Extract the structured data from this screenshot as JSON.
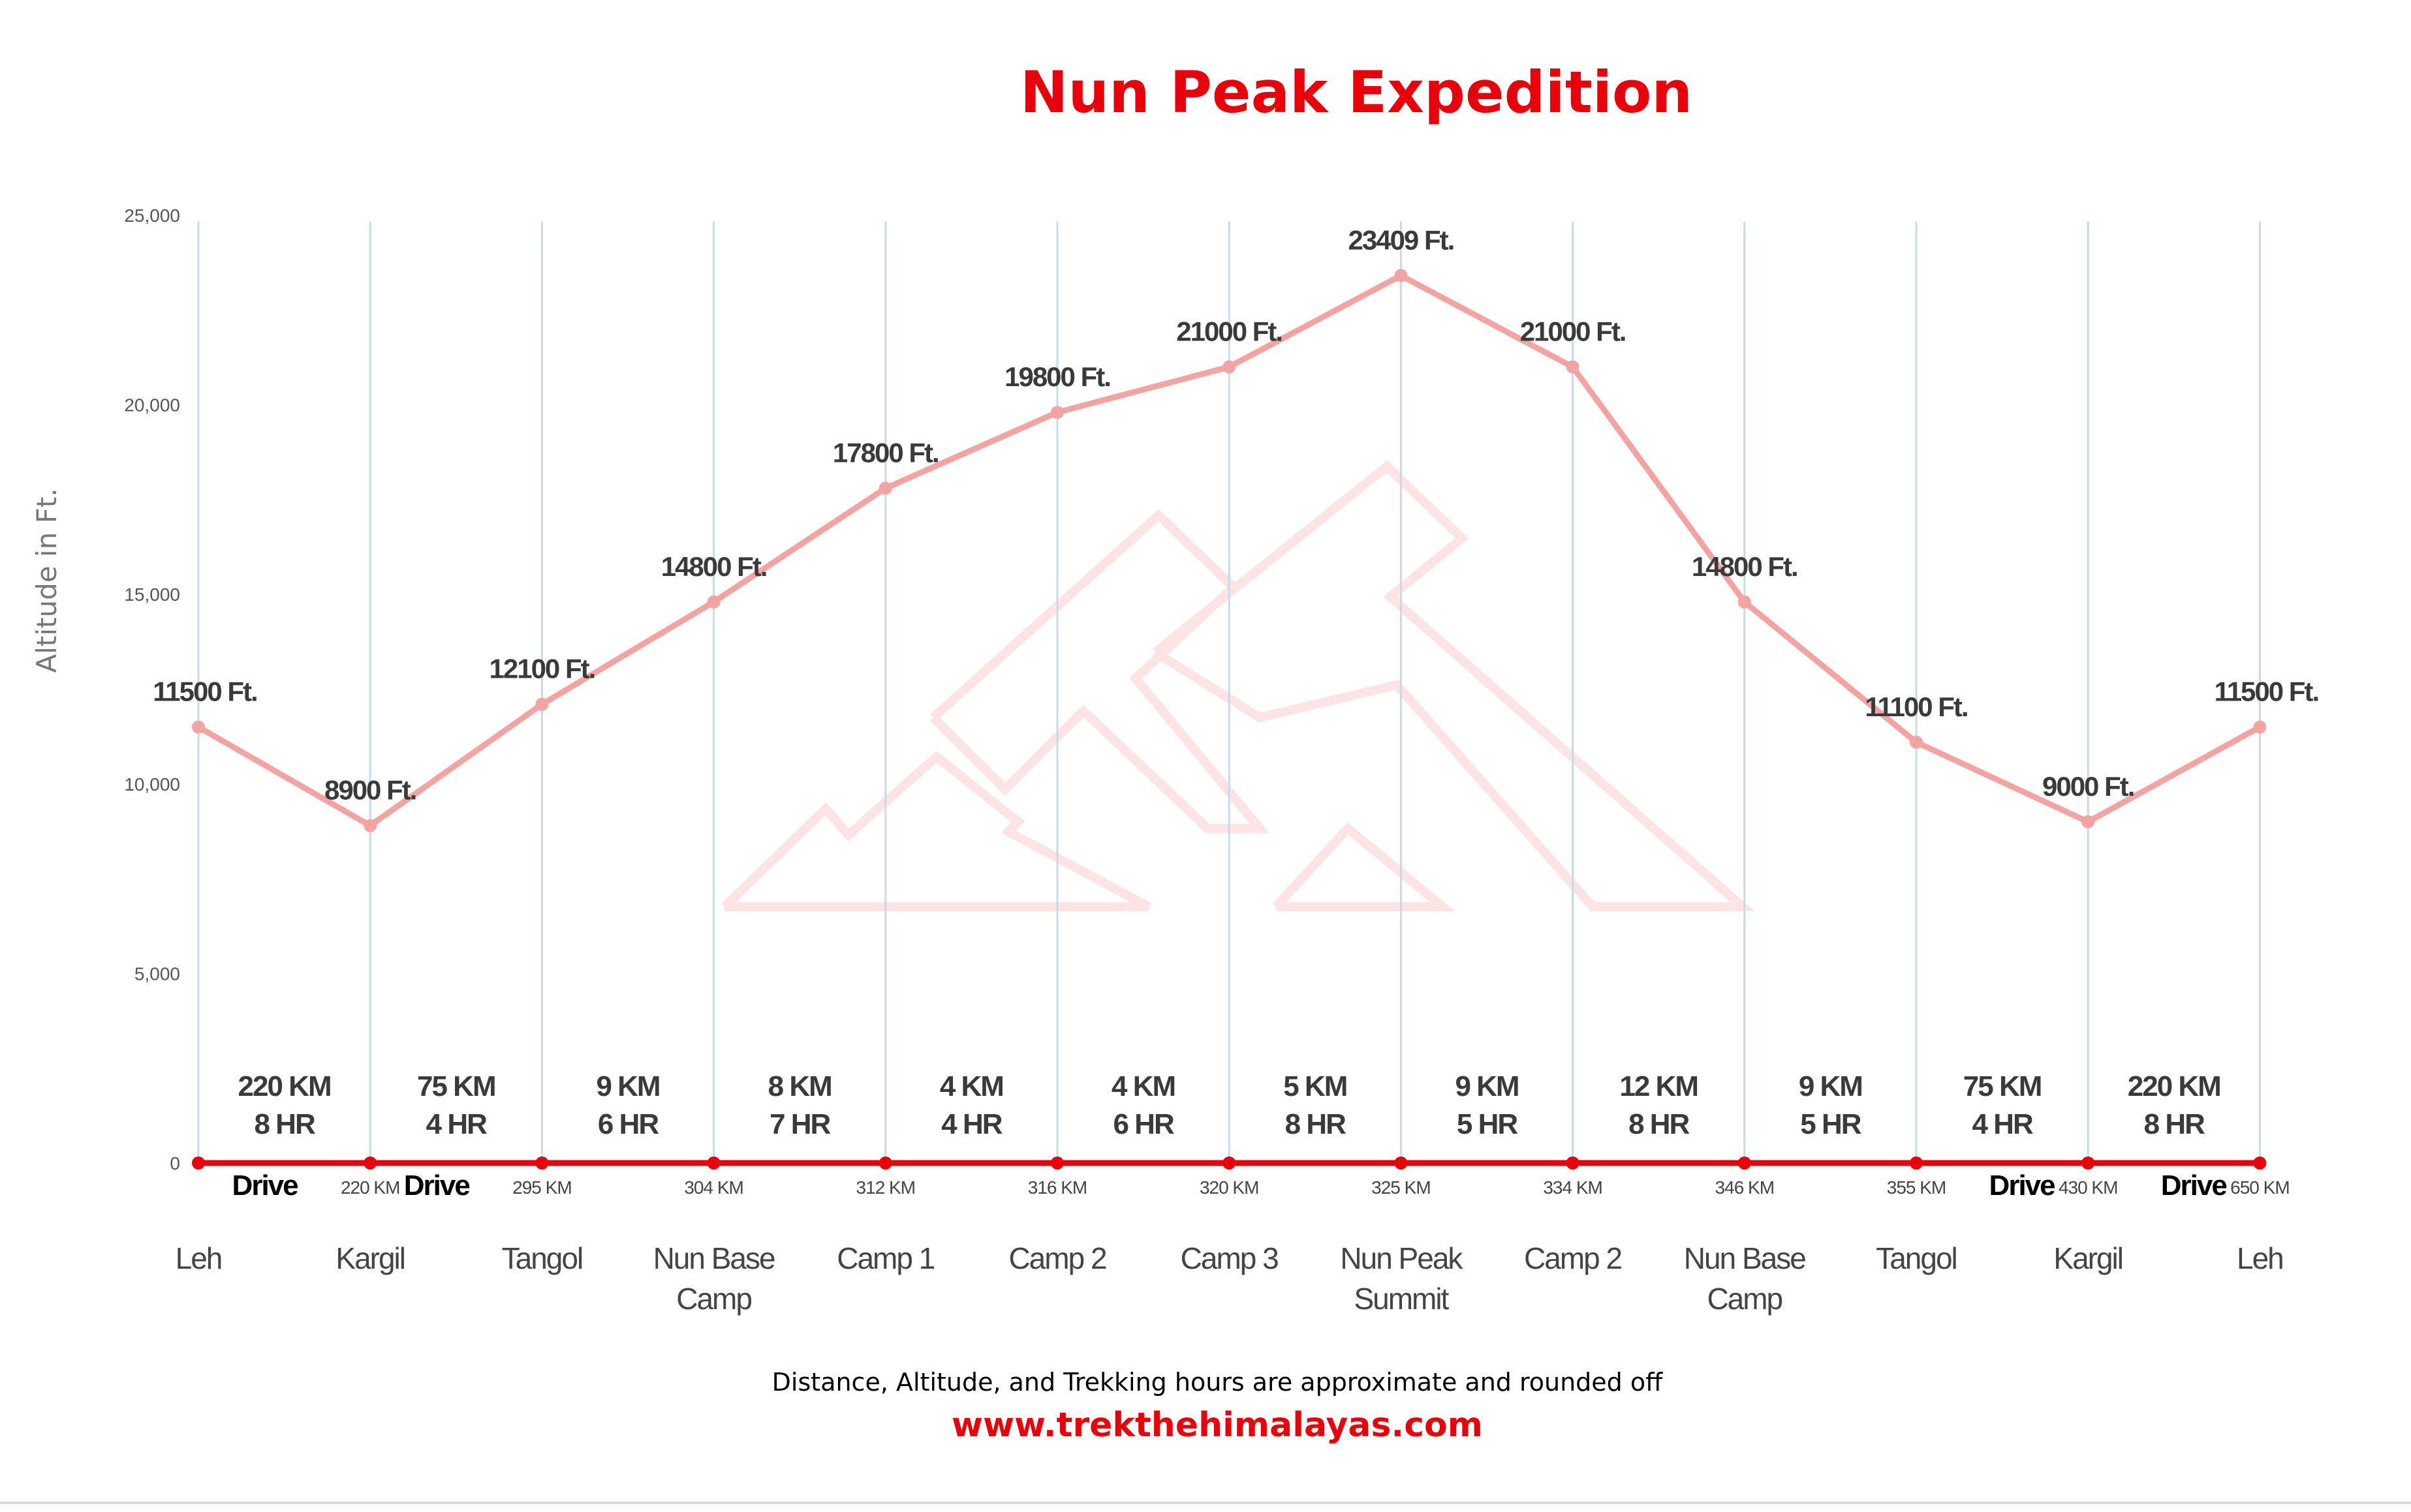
{
  "chart_data": {
    "type": "line",
    "title": "Nun Peak Expedition",
    "ylabel": "Altitude in Ft.",
    "xlabel": "",
    "ylim": [
      0,
      25000
    ],
    "yticks": [
      "0",
      "5,000",
      "10,000",
      "15,000",
      "20,000",
      "25,000"
    ],
    "ytick_values": [
      0,
      5000,
      10000,
      15000,
      20000,
      25000
    ],
    "grid": "vertical lines at each station",
    "colors": {
      "altitude_line": "#f4a3a3",
      "baseline": "#e8000b",
      "grid": "#c9d9ec",
      "title": "#e8000b"
    },
    "stations": [
      {
        "name": [
          "Leh"
        ],
        "altitude": 11500,
        "altitude_label": "11500 Ft.",
        "km_label": ""
      },
      {
        "name": [
          "Kargil"
        ],
        "altitude": 8900,
        "altitude_label": "8900 Ft.",
        "km_label": "220 KM"
      },
      {
        "name": [
          "Tangol"
        ],
        "altitude": 12100,
        "altitude_label": "12100 Ft.",
        "km_label": "295 KM"
      },
      {
        "name": [
          "Nun Base",
          "Camp"
        ],
        "altitude": 14800,
        "altitude_label": "14800 Ft.",
        "km_label": "304 KM"
      },
      {
        "name": [
          "Camp 1"
        ],
        "altitude": 17800,
        "altitude_label": "17800 Ft.",
        "km_label": "312 KM"
      },
      {
        "name": [
          "Camp 2"
        ],
        "altitude": 19800,
        "altitude_label": "19800 Ft.",
        "km_label": "316 KM"
      },
      {
        "name": [
          "Camp 3"
        ],
        "altitude": 21000,
        "altitude_label": "21000 Ft.",
        "km_label": "320 KM"
      },
      {
        "name": [
          "Nun Peak",
          "Summit"
        ],
        "altitude": 23409,
        "altitude_label": "23409 Ft.",
        "km_label": "325 KM"
      },
      {
        "name": [
          "Camp 2"
        ],
        "altitude": 21000,
        "altitude_label": "21000 Ft.",
        "km_label": "334 KM"
      },
      {
        "name": [
          "Nun Base",
          "Camp"
        ],
        "altitude": 14800,
        "altitude_label": "14800 Ft.",
        "km_label": "346 KM"
      },
      {
        "name": [
          "Tangol"
        ],
        "altitude": 11100,
        "altitude_label": "11100 Ft.",
        "km_label": "355 KM"
      },
      {
        "name": [
          "Kargil"
        ],
        "altitude": 9000,
        "altitude_label": "9000 Ft.",
        "km_label": "430 KM"
      },
      {
        "name": [
          "Leh"
        ],
        "altitude": 11500,
        "altitude_label": "11500 Ft.",
        "km_label": "650 KM"
      }
    ],
    "segments": [
      {
        "distance": "220 KM",
        "time": "8 HR",
        "mode": "Drive"
      },
      {
        "distance": "75 KM",
        "time": "4 HR",
        "mode": "Drive"
      },
      {
        "distance": "9 KM",
        "time": "6 HR",
        "mode": ""
      },
      {
        "distance": "8 KM",
        "time": "7 HR",
        "mode": ""
      },
      {
        "distance": "4 KM",
        "time": "4 HR",
        "mode": ""
      },
      {
        "distance": "4 KM",
        "time": "6 HR",
        "mode": ""
      },
      {
        "distance": "5 KM",
        "time": "8 HR",
        "mode": ""
      },
      {
        "distance": "9 KM",
        "time": "5 HR",
        "mode": ""
      },
      {
        "distance": "12 KM",
        "time": "8 HR",
        "mode": ""
      },
      {
        "distance": "9 KM",
        "time": "5 HR",
        "mode": ""
      },
      {
        "distance": "75 KM",
        "time": "4 HR",
        "mode": "Drive"
      },
      {
        "distance": "220 KM",
        "time": "8 HR",
        "mode": "Drive"
      }
    ]
  },
  "footer": {
    "note": "Distance, Altitude, and Trekking hours are approximate and rounded off",
    "website": "www.trekthehimalayas.com"
  }
}
